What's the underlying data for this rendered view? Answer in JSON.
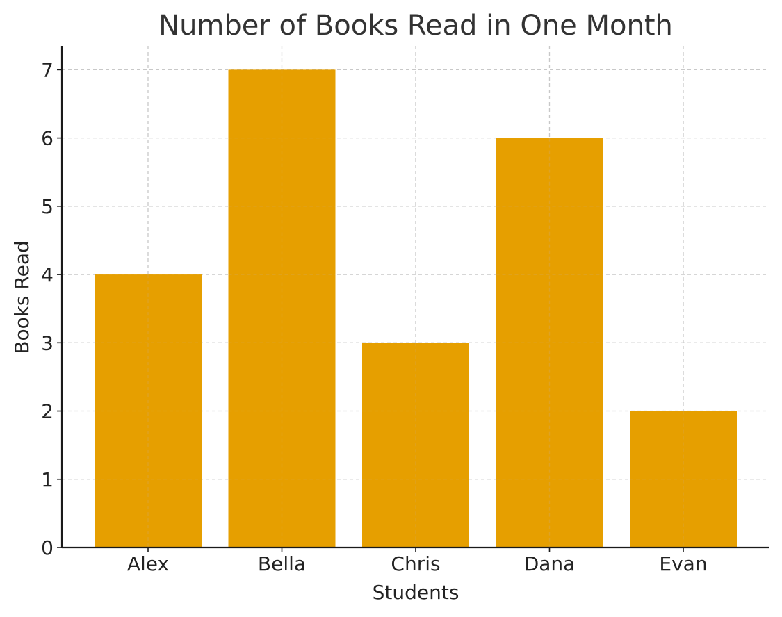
{
  "chart_data": {
    "type": "bar",
    "title": "Number of Books Read in One Month",
    "xlabel": "Students",
    "ylabel": "Books Read",
    "categories": [
      "Alex",
      "Bella",
      "Chris",
      "Dana",
      "Evan"
    ],
    "values": [
      4,
      7,
      3,
      6,
      2
    ],
    "ylim": [
      0,
      7.35
    ],
    "yticks": [
      "0",
      "1",
      "2",
      "3",
      "4",
      "5",
      "6",
      "7"
    ],
    "grid": true,
    "bar_color": "#E69F00"
  }
}
